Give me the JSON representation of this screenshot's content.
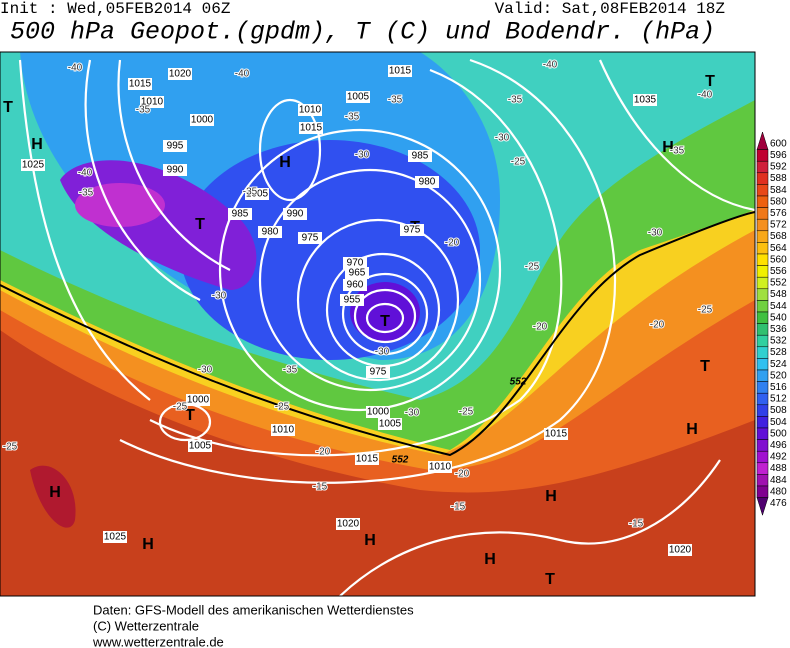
{
  "header": {
    "init": "Init : Wed,05FEB2014 06Z",
    "valid": "Valid: Sat,08FEB2014 18Z",
    "title": "500 hPa Geopot.(gpdm), T (C) und Bodendr. (hPa)"
  },
  "legend": {
    "labels": [
      600,
      596,
      592,
      588,
      584,
      580,
      576,
      572,
      568,
      564,
      560,
      556,
      552,
      548,
      544,
      540,
      536,
      532,
      528,
      524,
      520,
      516,
      512,
      508,
      504,
      500,
      496,
      492,
      488,
      484,
      480,
      476
    ],
    "colors": [
      "#a0003c",
      "#c00030",
      "#d0203a",
      "#e03020",
      "#e84818",
      "#ee6010",
      "#f07818",
      "#f49020",
      "#f8a818",
      "#fcc010",
      "#ffe000",
      "#f0f000",
      "#d0f020",
      "#a0e040",
      "#70d040",
      "#40c040",
      "#30c070",
      "#30d0a0",
      "#30d0d0",
      "#30c0f0",
      "#30a0f0",
      "#3080f0",
      "#3060f0",
      "#3040e8",
      "#4020e0",
      "#6010d8",
      "#8010d0",
      "#a010d0",
      "#c020d0",
      "#a010b0",
      "#800090",
      "#500070"
    ]
  },
  "map": {
    "highs": [
      "H",
      "H",
      "H",
      "H",
      "H",
      "H",
      "H",
      "H",
      "H"
    ],
    "lows": [
      "T",
      "T",
      "T",
      "T",
      "T",
      "T",
      "T",
      "T"
    ],
    "isobars": [
      "1020",
      "1015",
      "1010",
      "1000",
      "995",
      "990",
      "1025",
      "1005",
      "990",
      "985",
      "980",
      "975",
      "985",
      "980",
      "975",
      "970",
      "965",
      "960",
      "955",
      "1015",
      "1010",
      "1015",
      "1005",
      "1035",
      "1000",
      "1005",
      "1010",
      "1015",
      "1010",
      "1015",
      "1020",
      "1025",
      "1020",
      "1000",
      "1005",
      "975"
    ],
    "temperatures": [
      "-40",
      "-40",
      "-35",
      "-35",
      "-35",
      "-30",
      "-40",
      "-35",
      "-35",
      "-30",
      "-30",
      "-35",
      "-25",
      "-20",
      "-15",
      "-15",
      "-20",
      "-30",
      "-25",
      "-20",
      "-25",
      "-20",
      "-25",
      "-30",
      "-35",
      "-40",
      "-40",
      "-35",
      "-30",
      "-20",
      "-25",
      "-15",
      "-25",
      "-25",
      "-30"
    ],
    "heights": [
      "552",
      "552"
    ]
  },
  "footer": {
    "lines": [
      "Daten: GFS-Modell des amerikanischen Wetterdienstes",
      "(C) Wetterzentrale",
      "www.wetterzentrale.de"
    ]
  }
}
